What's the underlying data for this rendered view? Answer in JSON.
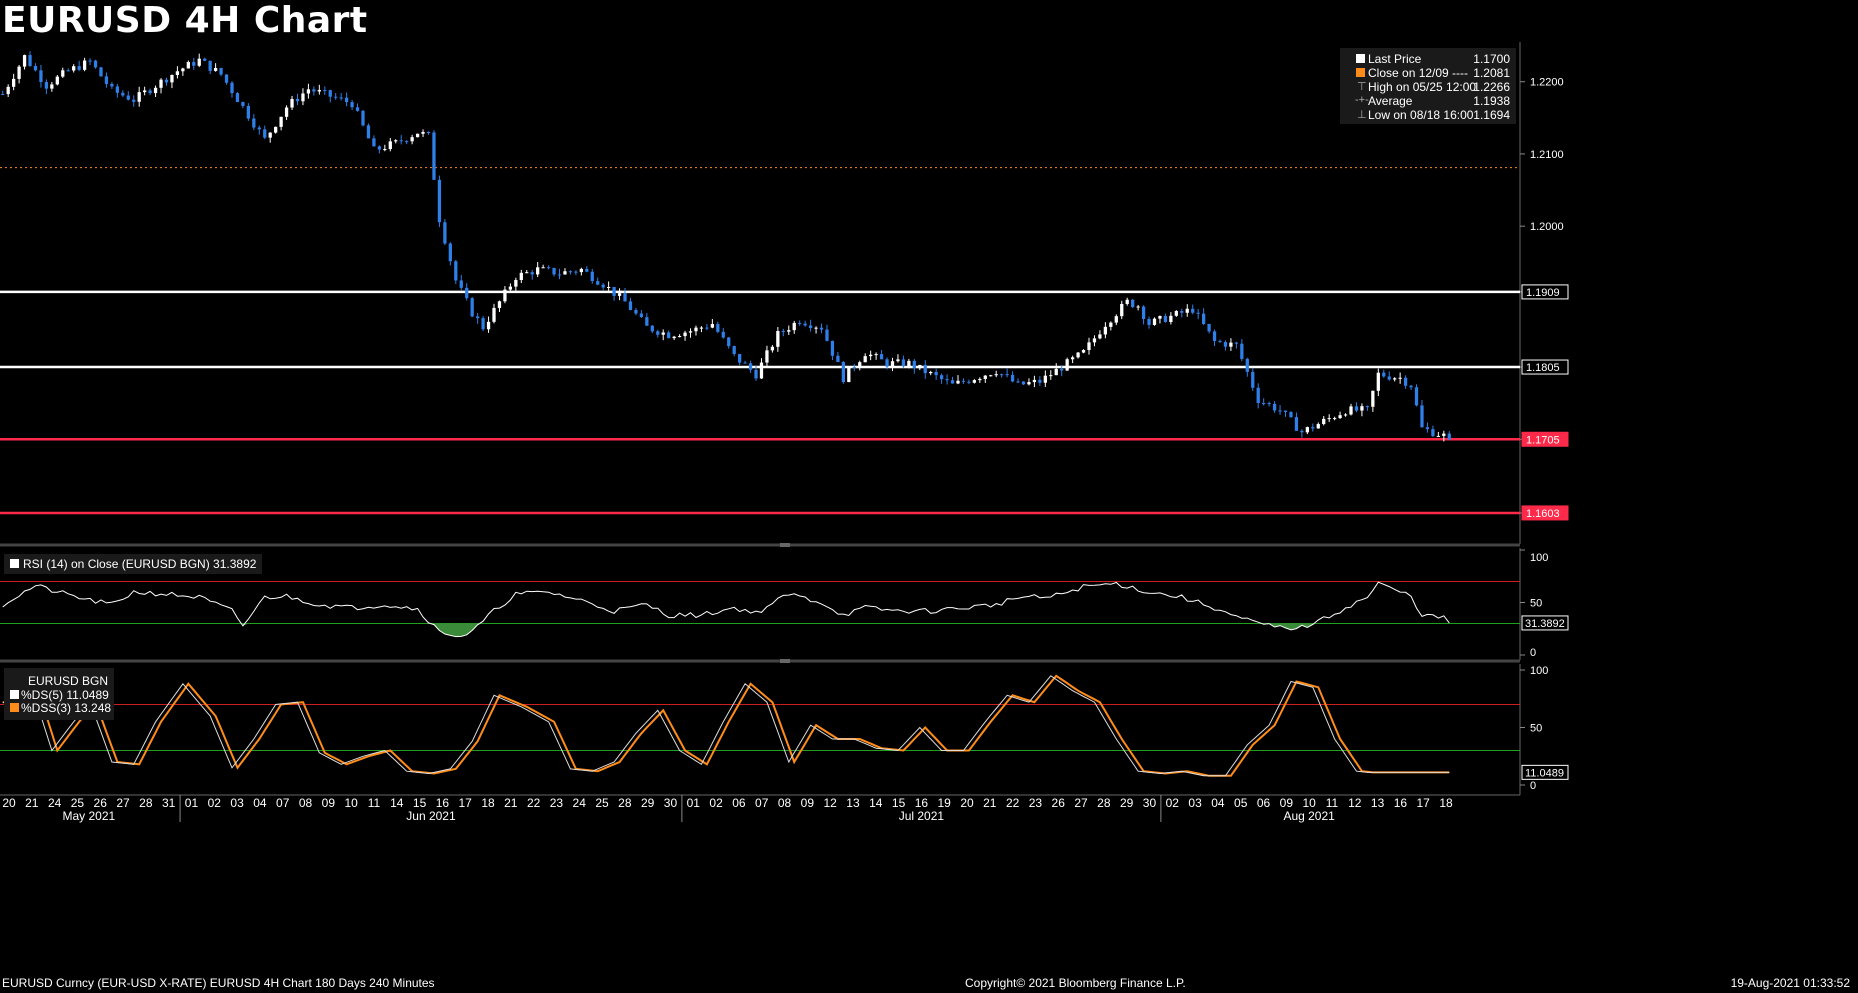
{
  "title": "EURUSD 4H Chart",
  "footer": {
    "left": "EURUSD Curncy (EUR-USD X-RATE) EURUSD 4H Chart 180 Days 240 Minutes",
    "mid": "Copyright© 2021 Bloomberg Finance L.P.",
    "right": "19-Aug-2021 01:33:52"
  },
  "colors": {
    "up": "#ffffff",
    "down": "#2f7fe8",
    "resistance": "#ffffff",
    "support": "#ff2a4a",
    "close_ref": "#ff8c1a",
    "rsi_line": "#ffffff",
    "rsi_fill": "#3a8a3a",
    "ds_line": "#ffffff",
    "dss_line": "#ff8c1a",
    "overbought": "#cc2020",
    "oversold": "#1fa01f"
  },
  "legend": {
    "items": [
      {
        "label": "Last Price",
        "value": "1.1700",
        "icon": "white-square"
      },
      {
        "label": "Close on 12/09 ----",
        "value": "1.2081",
        "icon": "orange-square"
      },
      {
        "label": "High on 05/25 12:00",
        "value": "1.2266",
        "icon": "high-marker"
      },
      {
        "label": "Average",
        "value": "1.1938",
        "icon": "average-marker"
      },
      {
        "label": "Low on 08/18 16:00",
        "value": "1.1694",
        "icon": "low-marker"
      }
    ]
  },
  "rsi_panel": {
    "label": "RSI (14)  on Close (EURUSD BGN) 31.3892",
    "current": "31.3892",
    "ticks": [
      "100",
      "50",
      "0"
    ]
  },
  "dss_panel": {
    "title": "EURUSD BGN",
    "ds_label": "%DS(5)   11.0489",
    "dss_label": "%DSS(3)  13.248",
    "current": "11.0489",
    "ticks": [
      "100",
      "50",
      "0"
    ]
  },
  "chart_data": [
    {
      "type": "candlestick",
      "ylim": [
        1.156,
        1.2255
      ],
      "yticks": [
        "1.2200",
        "1.2100",
        "1.2000",
        "1.1909",
        "1.1805",
        "1.1705",
        "1.1603"
      ],
      "hlines": [
        {
          "value": 1.1909,
          "label": "1.1909",
          "kind": "resistance"
        },
        {
          "value": 1.1805,
          "label": "1.1805",
          "kind": "resistance"
        },
        {
          "value": 1.1705,
          "label": "1.1705",
          "kind": "support"
        },
        {
          "value": 1.1603,
          "label": "1.1603",
          "kind": "support"
        },
        {
          "value": 1.2081,
          "label": "",
          "kind": "close_ref"
        }
      ],
      "anchors": [
        [
          0,
          1.2183
        ],
        [
          4,
          1.2235
        ],
        [
          8,
          1.2195
        ],
        [
          12,
          1.2215
        ],
        [
          16,
          1.2228
        ],
        [
          20,
          1.2188
        ],
        [
          24,
          1.2175
        ],
        [
          28,
          1.2195
        ],
        [
          32,
          1.2215
        ],
        [
          36,
          1.223
        ],
        [
          40,
          1.221
        ],
        [
          44,
          1.2165
        ],
        [
          48,
          1.212
        ],
        [
          52,
          1.2165
        ],
        [
          56,
          1.219
        ],
        [
          60,
          1.218
        ],
        [
          64,
          1.217
        ],
        [
          68,
          1.2105
        ],
        [
          72,
          1.2115
        ],
        [
          76,
          1.213
        ],
        [
          78,
          1.2125
        ],
        [
          80,
          1.201
        ],
        [
          83,
          1.1925
        ],
        [
          86,
          1.188
        ],
        [
          88,
          1.186
        ],
        [
          91,
          1.1895
        ],
        [
          94,
          1.193
        ],
        [
          98,
          1.194
        ],
        [
          102,
          1.1935
        ],
        [
          106,
          1.194
        ],
        [
          110,
          1.192
        ],
        [
          114,
          1.1895
        ],
        [
          118,
          1.186
        ],
        [
          122,
          1.185
        ],
        [
          126,
          1.1855
        ],
        [
          130,
          1.1865
        ],
        [
          134,
          1.182
        ],
        [
          138,
          1.1795
        ],
        [
          142,
          1.185
        ],
        [
          146,
          1.187
        ],
        [
          150,
          1.186
        ],
        [
          154,
          1.179
        ],
        [
          158,
          1.1825
        ],
        [
          162,
          1.181
        ],
        [
          166,
          1.181
        ],
        [
          170,
          1.1795
        ],
        [
          174,
          1.178
        ],
        [
          178,
          1.179
        ],
        [
          182,
          1.18
        ],
        [
          186,
          1.178
        ],
        [
          190,
          1.1785
        ],
        [
          194,
          1.1805
        ],
        [
          198,
          1.1825
        ],
        [
          202,
          1.1865
        ],
        [
          206,
          1.1895
        ],
        [
          208,
          1.189
        ],
        [
          210,
          1.1865
        ],
        [
          214,
          1.1875
        ],
        [
          218,
          1.1885
        ],
        [
          222,
          1.184
        ],
        [
          226,
          1.1835
        ],
        [
          230,
          1.176
        ],
        [
          234,
          1.1745
        ],
        [
          238,
          1.1715
        ],
        [
          242,
          1.173
        ],
        [
          246,
          1.1745
        ],
        [
          250,
          1.1745
        ],
        [
          252,
          1.1795
        ],
        [
          256,
          1.179
        ],
        [
          258,
          1.178
        ],
        [
          260,
          1.172
        ],
        [
          264,
          1.171
        ],
        [
          265,
          1.17
        ]
      ]
    },
    {
      "type": "line",
      "name": "RSI (14)",
      "ylim": [
        0,
        100
      ],
      "overbought": 70,
      "oversold": 30,
      "anchors": [
        [
          0,
          48
        ],
        [
          6,
          66
        ],
        [
          10,
          60
        ],
        [
          16,
          52
        ],
        [
          20,
          48
        ],
        [
          24,
          60
        ],
        [
          30,
          58
        ],
        [
          36,
          55
        ],
        [
          42,
          42
        ],
        [
          44,
          28
        ],
        [
          48,
          55
        ],
        [
          52,
          56
        ],
        [
          58,
          48
        ],
        [
          64,
          45
        ],
        [
          70,
          48
        ],
        [
          76,
          44
        ],
        [
          80,
          22
        ],
        [
          84,
          18
        ],
        [
          86,
          22
        ],
        [
          90,
          42
        ],
        [
          94,
          58
        ],
        [
          100,
          60
        ],
        [
          106,
          52
        ],
        [
          112,
          42
        ],
        [
          118,
          48
        ],
        [
          122,
          38
        ],
        [
          128,
          38
        ],
        [
          134,
          45
        ],
        [
          138,
          40
        ],
        [
          144,
          58
        ],
        [
          150,
          50
        ],
        [
          154,
          38
        ],
        [
          158,
          45
        ],
        [
          164,
          42
        ],
        [
          170,
          42
        ],
        [
          176,
          45
        ],
        [
          182,
          48
        ],
        [
          186,
          55
        ],
        [
          192,
          55
        ],
        [
          198,
          65
        ],
        [
          204,
          68
        ],
        [
          210,
          60
        ],
        [
          216,
          55
        ],
        [
          222,
          45
        ],
        [
          226,
          36
        ],
        [
          230,
          30
        ],
        [
          234,
          26
        ],
        [
          238,
          26
        ],
        [
          242,
          34
        ],
        [
          246,
          45
        ],
        [
          250,
          55
        ],
        [
          252,
          68
        ],
        [
          256,
          60
        ],
        [
          258,
          56
        ],
        [
          260,
          38
        ],
        [
          264,
          35
        ],
        [
          265,
          31.4
        ]
      ]
    },
    {
      "type": "line",
      "name": "%DS(5) / %DSS(3)",
      "ylim": [
        0,
        100
      ],
      "overbought": 70,
      "oversold": 30,
      "anchors": [
        [
          0,
          72
        ],
        [
          3,
          68
        ],
        [
          6,
          75
        ],
        [
          9,
          30
        ],
        [
          13,
          55
        ],
        [
          16,
          72
        ],
        [
          20,
          20
        ],
        [
          24,
          18
        ],
        [
          28,
          55
        ],
        [
          33,
          88
        ],
        [
          38,
          60
        ],
        [
          42,
          15
        ],
        [
          46,
          40
        ],
        [
          50,
          70
        ],
        [
          54,
          72
        ],
        [
          58,
          28
        ],
        [
          62,
          18
        ],
        [
          66,
          25
        ],
        [
          70,
          30
        ],
        [
          74,
          12
        ],
        [
          78,
          10
        ],
        [
          82,
          14
        ],
        [
          86,
          38
        ],
        [
          90,
          78
        ],
        [
          95,
          68
        ],
        [
          100,
          55
        ],
        [
          104,
          14
        ],
        [
          108,
          12
        ],
        [
          112,
          20
        ],
        [
          116,
          45
        ],
        [
          120,
          65
        ],
        [
          124,
          30
        ],
        [
          128,
          18
        ],
        [
          132,
          55
        ],
        [
          136,
          88
        ],
        [
          140,
          72
        ],
        [
          144,
          20
        ],
        [
          148,
          52
        ],
        [
          152,
          40
        ],
        [
          156,
          40
        ],
        [
          160,
          32
        ],
        [
          164,
          30
        ],
        [
          168,
          50
        ],
        [
          172,
          30
        ],
        [
          176,
          30
        ],
        [
          180,
          55
        ],
        [
          184,
          78
        ],
        [
          188,
          72
        ],
        [
          192,
          95
        ],
        [
          196,
          82
        ],
        [
          200,
          72
        ],
        [
          204,
          40
        ],
        [
          208,
          12
        ],
        [
          212,
          10
        ],
        [
          216,
          12
        ],
        [
          220,
          8
        ],
        [
          224,
          8
        ],
        [
          228,
          35
        ],
        [
          232,
          52
        ],
        [
          236,
          90
        ],
        [
          240,
          85
        ],
        [
          244,
          40
        ],
        [
          248,
          12
        ],
        [
          250,
          11
        ]
      ]
    }
  ],
  "x_axis": {
    "day_labels": [
      "20",
      "21",
      "24",
      "25",
      "26",
      "27",
      "28",
      "31",
      "01",
      "02",
      "03",
      "04",
      "07",
      "08",
      "09",
      "10",
      "11",
      "14",
      "15",
      "16",
      "17",
      "18",
      "21",
      "22",
      "23",
      "24",
      "25",
      "28",
      "29",
      "30",
      "01",
      "02",
      "06",
      "07",
      "08",
      "09",
      "12",
      "13",
      "14",
      "15",
      "16",
      "19",
      "20",
      "21",
      "22",
      "23",
      "26",
      "27",
      "28",
      "29",
      "30",
      "02",
      "03",
      "04",
      "05",
      "06",
      "09",
      "10",
      "11",
      "12",
      "13",
      "16",
      "17",
      "18"
    ],
    "month_labels": [
      {
        "label": "May 2021",
        "under": [
          "20",
          "31"
        ]
      },
      {
        "label": "Jun 2021",
        "under": [
          "01",
          "30"
        ]
      },
      {
        "label": "Jul 2021",
        "under": [
          "01",
          "30"
        ]
      },
      {
        "label": "Aug 2021",
        "under": [
          "02",
          "18"
        ]
      }
    ]
  }
}
